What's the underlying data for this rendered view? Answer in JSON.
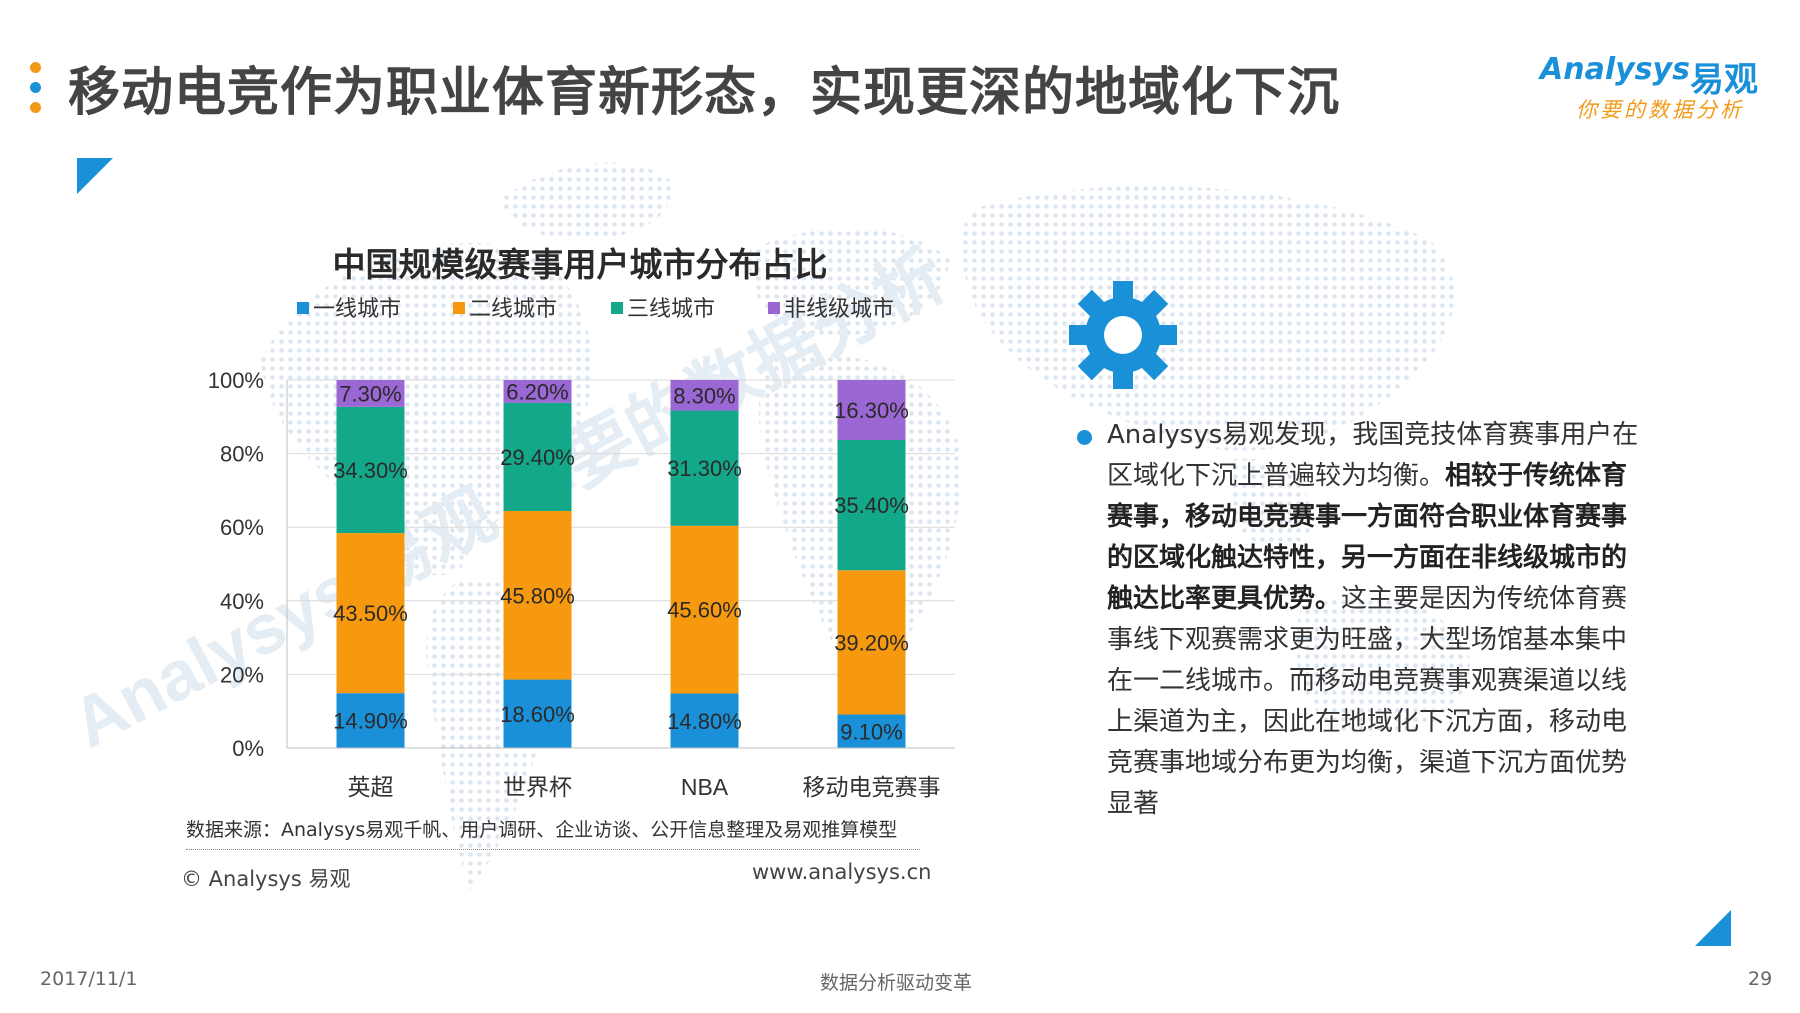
{
  "header": {
    "title": "移动电竞作为职业体育新形态，实现更深的地域化下沉",
    "logo_en": "Analysys",
    "logo_cn": "易观",
    "logo_tagline": "你要的数据分析",
    "dot_colors": [
      "#f29a1a",
      "#1a90d8",
      "#f29a1a"
    ]
  },
  "chart_data": {
    "type": "bar",
    "stacked": true,
    "title": "中国规模级赛事用户城市分布占比",
    "categories": [
      "英超",
      "世界杯",
      "NBA",
      "移动电竞赛事"
    ],
    "series": [
      {
        "name": "一线城市",
        "color": "#1a90d8",
        "values": [
          14.9,
          18.6,
          14.8,
          9.1
        ],
        "labels": [
          "14.90%",
          "18.60%",
          "14.80%",
          "9.10%"
        ]
      },
      {
        "name": "二线城市",
        "color": "#f7990f",
        "values": [
          43.5,
          45.8,
          45.6,
          39.2
        ],
        "labels": [
          "43.50%",
          "45.80%",
          "45.60%",
          "39.20%"
        ]
      },
      {
        "name": "三线城市",
        "color": "#14a88b",
        "values": [
          34.3,
          29.4,
          31.3,
          35.4
        ],
        "labels": [
          "34.30%",
          "29.40%",
          "31.30%",
          "35.40%"
        ]
      },
      {
        "name": "非线级城市",
        "color": "#9b67d4",
        "values": [
          7.3,
          6.2,
          8.3,
          16.3
        ],
        "labels": [
          "7.30%",
          "6.20%",
          "8.30%",
          "16.30%"
        ]
      }
    ],
    "y_ticks": [
      "0%",
      "20%",
      "40%",
      "60%",
      "80%",
      "100%"
    ],
    "ylim": [
      0,
      100
    ],
    "grid": true,
    "legend": "top",
    "watermark": "Analysys 易观 你要的数据分析"
  },
  "chart_source": "数据来源：Analysys易观千帆、用户调研、企业访谈、公开信息整理及易观推算模型",
  "chart_copyright": "© Analysys 易观",
  "chart_website": "www.analysys.cn",
  "insight": {
    "part1": "Analysys易观发现，我国竞技体育赛事用户在区域化下沉上普遍较为均衡。",
    "part2_bold": "相较于传统体育赛事，移动电竞赛事一方面符合职业体育赛事的区域化触达特性，另一方面在非线级城市的触达比率更具优势。",
    "part3": "这主要是因为传统体育赛事线下观赛需求更为旺盛，大型场馆基本集中在一二线城市。而移动电竞赛事观赛渠道以线上渠道为主，因此在地域化下沉方面，移动电竞赛事地域分布更为均衡，渠道下沉方面优势显著"
  },
  "footer": {
    "date": "2017/11/1",
    "center": "数据分析驱动变革",
    "page": "29"
  },
  "icons": [
    "gear-icon",
    "corner-triangle-icon",
    "world-map-background"
  ]
}
